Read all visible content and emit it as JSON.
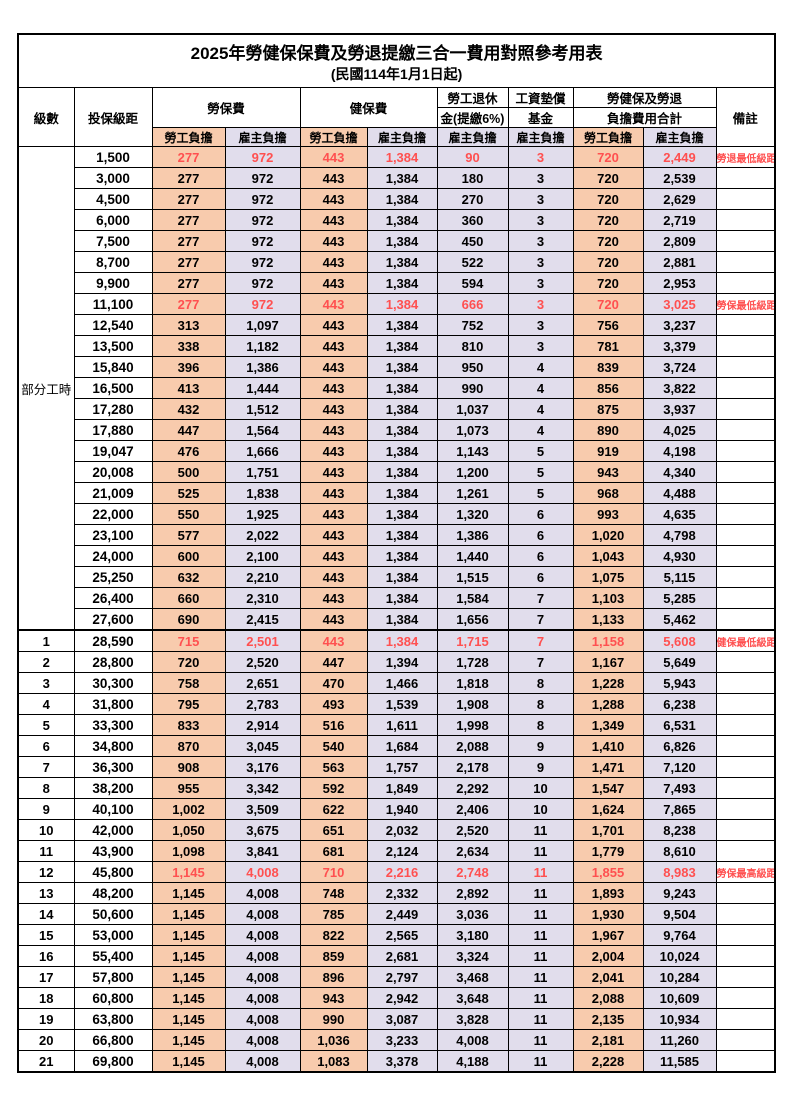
{
  "colors": {
    "employee_col_bg": "#F8CBAD",
    "employer_col_bg": "#E1DDEC",
    "highlight_text": "#FF5050",
    "border": "#000000",
    "background": "#FFFFFF"
  },
  "table": {
    "title": "2025年勞健保保費及勞退提繳三合一費用對照參考用表",
    "subtitle": "(民國114年1月1日起)",
    "headers": {
      "level": "級數",
      "bracket": "投保級距",
      "labor_insurance": "勞保費",
      "health_insurance": "健保費",
      "pension_line1": "勞工退休",
      "pension_line2": "金(提繳6%)",
      "wage_fund_line1": "工資墊償",
      "wage_fund_line2": "基金",
      "total_line1": "勞健保及勞退",
      "total_line2": "負擔費用合計",
      "remark": "備註",
      "sub": [
        "勞工負擔",
        "雇主負擔",
        "勞工負擔",
        "雇主負擔",
        "雇主負擔",
        "雇主負擔",
        "勞工負擔",
        "雇主負擔"
      ]
    },
    "group_label": "部分工時",
    "group_rowspan": 23,
    "rows": [
      {
        "level": "",
        "bracket": "1,500",
        "values": [
          "277",
          "972",
          "443",
          "1,384",
          "90",
          "3",
          "720",
          "2,449"
        ],
        "remark": "勞退最低級距",
        "highlight": true
      },
      {
        "level": "",
        "bracket": "3,000",
        "values": [
          "277",
          "972",
          "443",
          "1,384",
          "180",
          "3",
          "720",
          "2,539"
        ],
        "remark": ""
      },
      {
        "level": "",
        "bracket": "4,500",
        "values": [
          "277",
          "972",
          "443",
          "1,384",
          "270",
          "3",
          "720",
          "2,629"
        ],
        "remark": ""
      },
      {
        "level": "",
        "bracket": "6,000",
        "values": [
          "277",
          "972",
          "443",
          "1,384",
          "360",
          "3",
          "720",
          "2,719"
        ],
        "remark": ""
      },
      {
        "level": "",
        "bracket": "7,500",
        "values": [
          "277",
          "972",
          "443",
          "1,384",
          "450",
          "3",
          "720",
          "2,809"
        ],
        "remark": ""
      },
      {
        "level": "",
        "bracket": "8,700",
        "values": [
          "277",
          "972",
          "443",
          "1,384",
          "522",
          "3",
          "720",
          "2,881"
        ],
        "remark": ""
      },
      {
        "level": "",
        "bracket": "9,900",
        "values": [
          "277",
          "972",
          "443",
          "1,384",
          "594",
          "3",
          "720",
          "2,953"
        ],
        "remark": ""
      },
      {
        "level": "",
        "bracket": "11,100",
        "values": [
          "277",
          "972",
          "443",
          "1,384",
          "666",
          "3",
          "720",
          "3,025"
        ],
        "remark": "勞保最低級距",
        "highlight": true
      },
      {
        "level": "",
        "bracket": "12,540",
        "values": [
          "313",
          "1,097",
          "443",
          "1,384",
          "752",
          "3",
          "756",
          "3,237"
        ],
        "remark": ""
      },
      {
        "level": "",
        "bracket": "13,500",
        "values": [
          "338",
          "1,182",
          "443",
          "1,384",
          "810",
          "3",
          "781",
          "3,379"
        ],
        "remark": ""
      },
      {
        "level": "",
        "bracket": "15,840",
        "values": [
          "396",
          "1,386",
          "443",
          "1,384",
          "950",
          "4",
          "839",
          "3,724"
        ],
        "remark": ""
      },
      {
        "level": "",
        "bracket": "16,500",
        "values": [
          "413",
          "1,444",
          "443",
          "1,384",
          "990",
          "4",
          "856",
          "3,822"
        ],
        "remark": ""
      },
      {
        "level": "",
        "bracket": "17,280",
        "values": [
          "432",
          "1,512",
          "443",
          "1,384",
          "1,037",
          "4",
          "875",
          "3,937"
        ],
        "remark": ""
      },
      {
        "level": "",
        "bracket": "17,880",
        "values": [
          "447",
          "1,564",
          "443",
          "1,384",
          "1,073",
          "4",
          "890",
          "4,025"
        ],
        "remark": ""
      },
      {
        "level": "",
        "bracket": "19,047",
        "values": [
          "476",
          "1,666",
          "443",
          "1,384",
          "1,143",
          "5",
          "919",
          "4,198"
        ],
        "remark": ""
      },
      {
        "level": "",
        "bracket": "20,008",
        "values": [
          "500",
          "1,751",
          "443",
          "1,384",
          "1,200",
          "5",
          "943",
          "4,340"
        ],
        "remark": ""
      },
      {
        "level": "",
        "bracket": "21,009",
        "values": [
          "525",
          "1,838",
          "443",
          "1,384",
          "1,261",
          "5",
          "968",
          "4,488"
        ],
        "remark": ""
      },
      {
        "level": "",
        "bracket": "22,000",
        "values": [
          "550",
          "1,925",
          "443",
          "1,384",
          "1,320",
          "6",
          "993",
          "4,635"
        ],
        "remark": ""
      },
      {
        "level": "",
        "bracket": "23,100",
        "values": [
          "577",
          "2,022",
          "443",
          "1,384",
          "1,386",
          "6",
          "1,020",
          "4,798"
        ],
        "remark": ""
      },
      {
        "level": "",
        "bracket": "24,000",
        "values": [
          "600",
          "2,100",
          "443",
          "1,384",
          "1,440",
          "6",
          "1,043",
          "4,930"
        ],
        "remark": ""
      },
      {
        "level": "",
        "bracket": "25,250",
        "values": [
          "632",
          "2,210",
          "443",
          "1,384",
          "1,515",
          "6",
          "1,075",
          "5,115"
        ],
        "remark": ""
      },
      {
        "level": "",
        "bracket": "26,400",
        "values": [
          "660",
          "2,310",
          "443",
          "1,384",
          "1,584",
          "7",
          "1,103",
          "5,285"
        ],
        "remark": ""
      },
      {
        "level": "",
        "bracket": "27,600",
        "values": [
          "690",
          "2,415",
          "443",
          "1,384",
          "1,656",
          "7",
          "1,133",
          "5,462"
        ],
        "remark": ""
      },
      {
        "level": "1",
        "bracket": "28,590",
        "values": [
          "715",
          "2,501",
          "443",
          "1,384",
          "1,715",
          "7",
          "1,158",
          "5,608"
        ],
        "remark": "健保最低級距",
        "highlight": true,
        "thick_top": true
      },
      {
        "level": "2",
        "bracket": "28,800",
        "values": [
          "720",
          "2,520",
          "447",
          "1,394",
          "1,728",
          "7",
          "1,167",
          "5,649"
        ],
        "remark": ""
      },
      {
        "level": "3",
        "bracket": "30,300",
        "values": [
          "758",
          "2,651",
          "470",
          "1,466",
          "1,818",
          "8",
          "1,228",
          "5,943"
        ],
        "remark": ""
      },
      {
        "level": "4",
        "bracket": "31,800",
        "values": [
          "795",
          "2,783",
          "493",
          "1,539",
          "1,908",
          "8",
          "1,288",
          "6,238"
        ],
        "remark": ""
      },
      {
        "level": "5",
        "bracket": "33,300",
        "values": [
          "833",
          "2,914",
          "516",
          "1,611",
          "1,998",
          "8",
          "1,349",
          "6,531"
        ],
        "remark": ""
      },
      {
        "level": "6",
        "bracket": "34,800",
        "values": [
          "870",
          "3,045",
          "540",
          "1,684",
          "2,088",
          "9",
          "1,410",
          "6,826"
        ],
        "remark": ""
      },
      {
        "level": "7",
        "bracket": "36,300",
        "values": [
          "908",
          "3,176",
          "563",
          "1,757",
          "2,178",
          "9",
          "1,471",
          "7,120"
        ],
        "remark": ""
      },
      {
        "level": "8",
        "bracket": "38,200",
        "values": [
          "955",
          "3,342",
          "592",
          "1,849",
          "2,292",
          "10",
          "1,547",
          "7,493"
        ],
        "remark": ""
      },
      {
        "level": "9",
        "bracket": "40,100",
        "values": [
          "1,002",
          "3,509",
          "622",
          "1,940",
          "2,406",
          "10",
          "1,624",
          "7,865"
        ],
        "remark": ""
      },
      {
        "level": "10",
        "bracket": "42,000",
        "values": [
          "1,050",
          "3,675",
          "651",
          "2,032",
          "2,520",
          "11",
          "1,701",
          "8,238"
        ],
        "remark": ""
      },
      {
        "level": "11",
        "bracket": "43,900",
        "values": [
          "1,098",
          "3,841",
          "681",
          "2,124",
          "2,634",
          "11",
          "1,779",
          "8,610"
        ],
        "remark": ""
      },
      {
        "level": "12",
        "bracket": "45,800",
        "values": [
          "1,145",
          "4,008",
          "710",
          "2,216",
          "2,748",
          "11",
          "1,855",
          "8,983"
        ],
        "remark": "勞保最高級距",
        "highlight": true
      },
      {
        "level": "13",
        "bracket": "48,200",
        "values": [
          "1,145",
          "4,008",
          "748",
          "2,332",
          "2,892",
          "11",
          "1,893",
          "9,243"
        ],
        "remark": ""
      },
      {
        "level": "14",
        "bracket": "50,600",
        "values": [
          "1,145",
          "4,008",
          "785",
          "2,449",
          "3,036",
          "11",
          "1,930",
          "9,504"
        ],
        "remark": ""
      },
      {
        "level": "15",
        "bracket": "53,000",
        "values": [
          "1,145",
          "4,008",
          "822",
          "2,565",
          "3,180",
          "11",
          "1,967",
          "9,764"
        ],
        "remark": ""
      },
      {
        "level": "16",
        "bracket": "55,400",
        "values": [
          "1,145",
          "4,008",
          "859",
          "2,681",
          "3,324",
          "11",
          "2,004",
          "10,024"
        ],
        "remark": ""
      },
      {
        "level": "17",
        "bracket": "57,800",
        "values": [
          "1,145",
          "4,008",
          "896",
          "2,797",
          "3,468",
          "11",
          "2,041",
          "10,284"
        ],
        "remark": ""
      },
      {
        "level": "18",
        "bracket": "60,800",
        "values": [
          "1,145",
          "4,008",
          "943",
          "2,942",
          "3,648",
          "11",
          "2,088",
          "10,609"
        ],
        "remark": ""
      },
      {
        "level": "19",
        "bracket": "63,800",
        "values": [
          "1,145",
          "4,008",
          "990",
          "3,087",
          "3,828",
          "11",
          "2,135",
          "10,934"
        ],
        "remark": ""
      },
      {
        "level": "20",
        "bracket": "66,800",
        "values": [
          "1,145",
          "4,008",
          "1,036",
          "3,233",
          "4,008",
          "11",
          "2,181",
          "11,260"
        ],
        "remark": ""
      },
      {
        "level": "21",
        "bracket": "69,800",
        "values": [
          "1,145",
          "4,008",
          "1,083",
          "3,378",
          "4,188",
          "11",
          "2,228",
          "11,585"
        ],
        "remark": ""
      }
    ]
  }
}
